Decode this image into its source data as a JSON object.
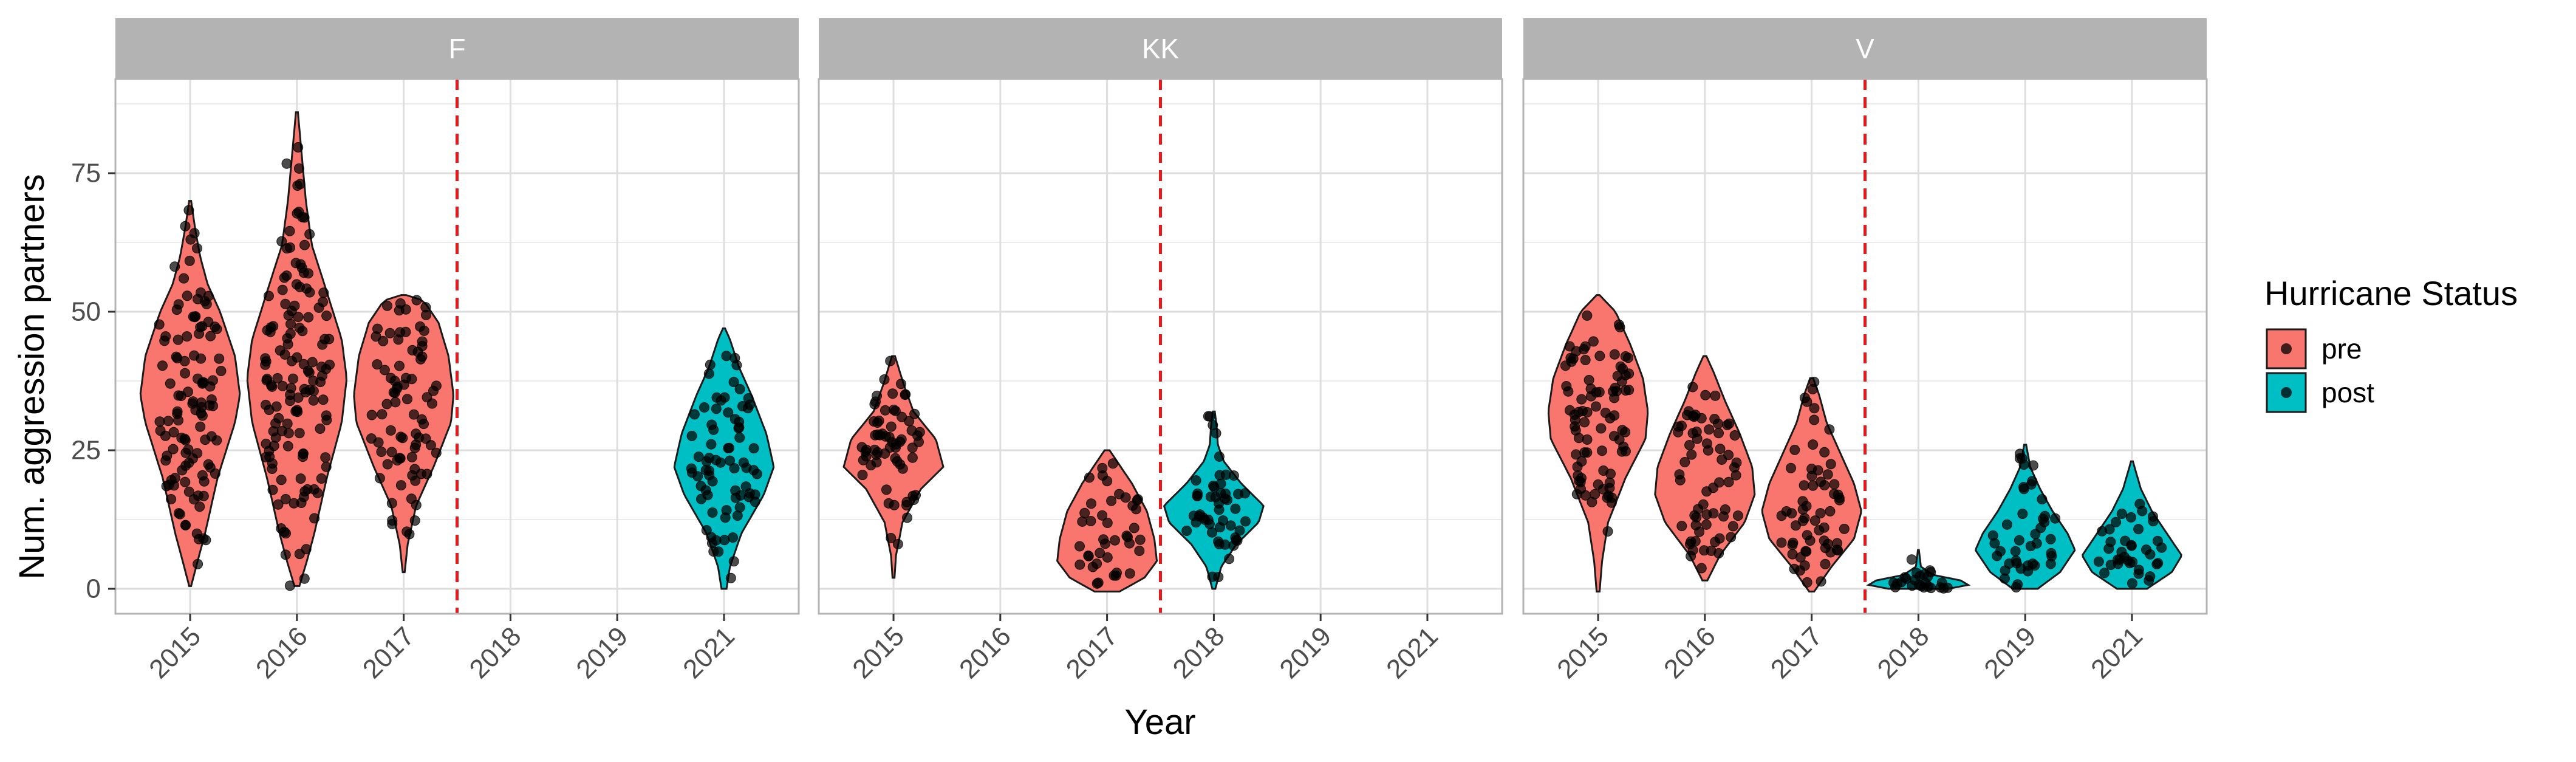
{
  "chart_data": {
    "type": "violin",
    "xlabel": "Year",
    "ylabel": "Num. aggression partners",
    "ylim": [
      -4.5,
      92
    ],
    "yticks": [
      0,
      25,
      50,
      75
    ],
    "x_categories": [
      "2015",
      "2016",
      "2017",
      "2018",
      "2019",
      "2021"
    ],
    "hurricane_line_between": [
      "2017",
      "2018"
    ],
    "line_color": "#e41a1c",
    "grid": true,
    "legend": {
      "title": "Hurricane Status",
      "position": "right",
      "entries": [
        {
          "label": "pre",
          "color": "#f8766d"
        },
        {
          "label": "post",
          "color": "#00bfc4"
        }
      ]
    },
    "panels": [
      {
        "name": "F",
        "violins": [
          {
            "year": "2015",
            "status": "pre",
            "min": 0.5,
            "max": 70,
            "median": 35,
            "profile": [
              [
                0.5,
                0.02
              ],
              [
                5,
                0.15
              ],
              [
                10,
                0.3
              ],
              [
                20,
                0.55
              ],
              [
                30,
                0.9
              ],
              [
                35,
                1.0
              ],
              [
                42,
                0.9
              ],
              [
                50,
                0.6
              ],
              [
                55,
                0.35
              ],
              [
                60,
                0.2
              ],
              [
                65,
                0.1
              ],
              [
                70,
                0.02
              ]
            ]
          },
          {
            "year": "2016",
            "status": "pre",
            "min": 0.5,
            "max": 86,
            "median": 37,
            "profile": [
              [
                0.5,
                0.05
              ],
              [
                5,
                0.2
              ],
              [
                10,
                0.35
              ],
              [
                20,
                0.6
              ],
              [
                30,
                0.9
              ],
              [
                38,
                1.0
              ],
              [
                45,
                0.9
              ],
              [
                55,
                0.55
              ],
              [
                62,
                0.3
              ],
              [
                70,
                0.18
              ],
              [
                78,
                0.1
              ],
              [
                86,
                0.02
              ]
            ]
          },
          {
            "year": "2017",
            "status": "pre",
            "min": 3,
            "max": 53,
            "median": 32,
            "profile": [
              [
                3,
                0.02
              ],
              [
                8,
                0.08
              ],
              [
                15,
                0.25
              ],
              [
                22,
                0.6
              ],
              [
                30,
                0.95
              ],
              [
                35,
                1.0
              ],
              [
                42,
                0.9
              ],
              [
                48,
                0.7
              ],
              [
                52,
                0.4
              ],
              [
                53,
                0.05
              ]
            ]
          },
          {
            "year": "2021",
            "status": "post",
            "min": 0,
            "max": 47,
            "median": 22,
            "profile": [
              [
                0,
                0.05
              ],
              [
                4,
                0.12
              ],
              [
                10,
                0.35
              ],
              [
                17,
                0.8
              ],
              [
                22,
                1.0
              ],
              [
                28,
                0.85
              ],
              [
                35,
                0.55
              ],
              [
                40,
                0.3
              ],
              [
                45,
                0.12
              ],
              [
                47,
                0.02
              ]
            ]
          }
        ]
      },
      {
        "name": "KK",
        "violins": [
          {
            "year": "2015",
            "status": "pre",
            "min": 2,
            "max": 42,
            "median": 25,
            "profile": [
              [
                2,
                0.02
              ],
              [
                6,
                0.05
              ],
              [
                12,
                0.18
              ],
              [
                18,
                0.55
              ],
              [
                22,
                1.0
              ],
              [
                27,
                0.85
              ],
              [
                32,
                0.4
              ],
              [
                37,
                0.2
              ],
              [
                42,
                0.03
              ]
            ]
          },
          {
            "year": "2017",
            "status": "pre",
            "min": -0.5,
            "max": 25,
            "median": 9,
            "profile": [
              [
                -0.5,
                0.25
              ],
              [
                2,
                0.75
              ],
              [
                5,
                1.0
              ],
              [
                9,
                0.95
              ],
              [
                14,
                0.8
              ],
              [
                19,
                0.5
              ],
              [
                23,
                0.2
              ],
              [
                25,
                0.05
              ]
            ]
          },
          {
            "year": "2018",
            "status": "post",
            "min": 0,
            "max": 32,
            "median": 13,
            "profile": [
              [
                0,
                0.03
              ],
              [
                4,
                0.15
              ],
              [
                8,
                0.45
              ],
              [
                12,
                0.9
              ],
              [
                15,
                1.0
              ],
              [
                19,
                0.55
              ],
              [
                23,
                0.2
              ],
              [
                26,
                0.08
              ],
              [
                29,
                0.06
              ],
              [
                32,
                0.02
              ]
            ]
          }
        ]
      },
      {
        "name": "V",
        "violins": [
          {
            "year": "2015",
            "status": "pre",
            "min": -0.5,
            "max": 53,
            "median": 30,
            "profile": [
              [
                -0.5,
                0.03
              ],
              [
                5,
                0.08
              ],
              [
                12,
                0.2
              ],
              [
                20,
                0.55
              ],
              [
                27,
                0.95
              ],
              [
                32,
                1.0
              ],
              [
                38,
                0.9
              ],
              [
                44,
                0.65
              ],
              [
                50,
                0.35
              ],
              [
                53,
                0.03
              ]
            ]
          },
          {
            "year": "2016",
            "status": "pre",
            "min": 1.5,
            "max": 42,
            "median": 19,
            "profile": [
              [
                1.5,
                0.05
              ],
              [
                6,
                0.3
              ],
              [
                12,
                0.8
              ],
              [
                17,
                1.0
              ],
              [
                22,
                0.95
              ],
              [
                28,
                0.7
              ],
              [
                34,
                0.4
              ],
              [
                39,
                0.18
              ],
              [
                42,
                0.03
              ]
            ]
          },
          {
            "year": "2017",
            "status": "pre",
            "min": -0.5,
            "max": 38,
            "median": 14,
            "profile": [
              [
                -0.5,
                0.05
              ],
              [
                4,
                0.4
              ],
              [
                9,
                0.85
              ],
              [
                14,
                1.0
              ],
              [
                19,
                0.85
              ],
              [
                25,
                0.55
              ],
              [
                30,
                0.3
              ],
              [
                35,
                0.15
              ],
              [
                38,
                0.03
              ]
            ]
          },
          {
            "year": "2018",
            "status": "post",
            "min": 0,
            "max": 7,
            "median": 1,
            "profile": [
              [
                0,
                0.6
              ],
              [
                0.7,
                1.0
              ],
              [
                1.5,
                0.85
              ],
              [
                2.5,
                0.3
              ],
              [
                4,
                0.05
              ],
              [
                5.5,
                0.03
              ],
              [
                7,
                0.01
              ]
            ]
          },
          {
            "year": "2019",
            "status": "post",
            "min": 0,
            "max": 26,
            "median": 8,
            "profile": [
              [
                0,
                0.25
              ],
              [
                3,
                0.7
              ],
              [
                7,
                1.0
              ],
              [
                10,
                0.85
              ],
              [
                14,
                0.55
              ],
              [
                18,
                0.3
              ],
              [
                22,
                0.1
              ],
              [
                26,
                0.02
              ]
            ]
          },
          {
            "year": "2021",
            "status": "post",
            "min": 0,
            "max": 23,
            "median": 6,
            "profile": [
              [
                0,
                0.3
              ],
              [
                3,
                0.8
              ],
              [
                6,
                1.0
              ],
              [
                10,
                0.7
              ],
              [
                14,
                0.4
              ],
              [
                18,
                0.18
              ],
              [
                22,
                0.05
              ],
              [
                23,
                0.02
              ]
            ]
          }
        ]
      }
    ]
  }
}
